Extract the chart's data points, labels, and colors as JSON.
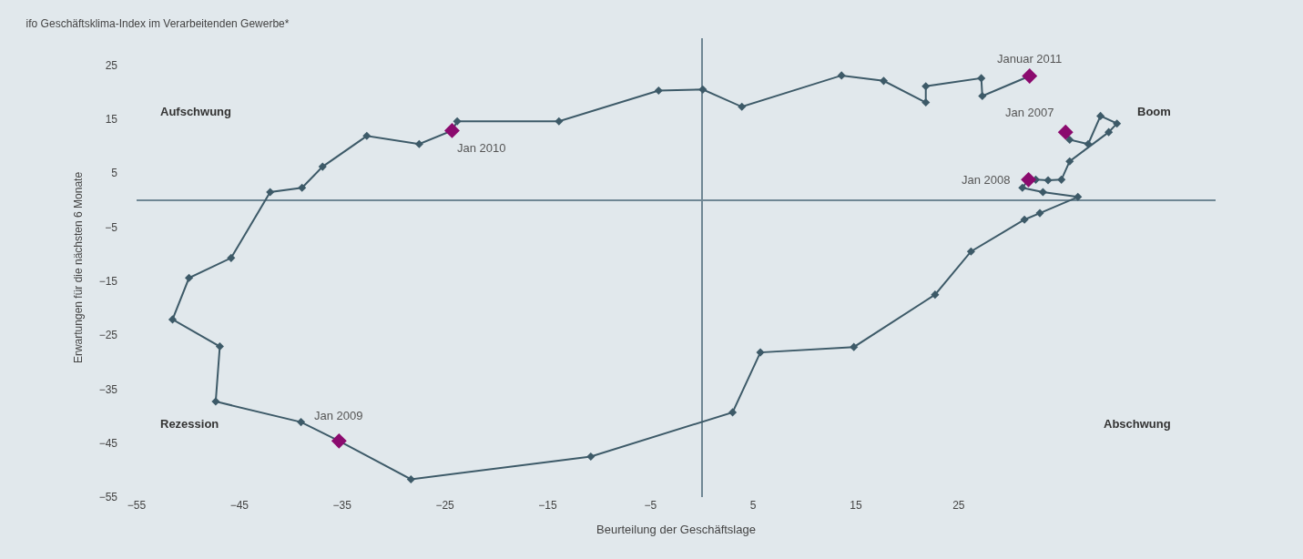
{
  "chart_data": {
    "type": "line",
    "title": "ifo Geschäftsklima-Index im Verarbeitenden Gewerbe*",
    "xlabel": "Beurteilung der Geschäftslage",
    "ylabel": "Erwartungen für die nächsten 6 Monate",
    "xlim": [
      -55,
      50
    ],
    "ylim": [
      -55,
      30
    ],
    "xticks": [
      -55,
      -45,
      -35,
      -25,
      -15,
      -5,
      5,
      15,
      25
    ],
    "yticks": [
      -55,
      -45,
      -35,
      -25,
      -15,
      -5,
      5,
      15,
      25
    ],
    "grid": false,
    "marker": "diamond",
    "series": [
      {
        "color": "#3d5a68",
        "x": [
          35.4,
          35.8,
          37.6,
          38.8,
          40.4,
          39.6,
          35.8,
          35.0,
          33.7,
          32.5,
          31.8,
          31.2,
          33.2,
          36.6,
          32.9,
          31.4,
          26.2,
          22.7,
          14.8,
          5.7,
          3.0,
          -10.8,
          -28.3,
          -35.3,
          -39.0,
          -47.3,
          -46.9,
          -51.5,
          -49.9,
          -45.8,
          -42.0,
          -38.9,
          -36.9,
          -32.6,
          -27.5,
          -24.3,
          -23.8,
          -13.9,
          -4.2,
          0.1,
          3.9,
          13.6,
          17.7,
          21.8,
          21.8,
          27.2,
          27.3,
          31.9
        ],
        "values": [
          12.6,
          11.2,
          10.4,
          15.6,
          14.2,
          12.6,
          7.2,
          3.8,
          3.7,
          3.8,
          3.8,
          2.3,
          1.5,
          0.6,
          -2.4,
          -3.6,
          -9.5,
          -17.5,
          -27.2,
          -28.2,
          -39.3,
          -47.5,
          -51.7,
          -44.6,
          -41.1,
          -37.3,
          -27.1,
          -22.1,
          -14.4,
          -10.7,
          1.5,
          2.3,
          6.2,
          11.9,
          10.4,
          12.9,
          14.6,
          14.6,
          20.3,
          20.5,
          17.3,
          23.1,
          22.1,
          18.1,
          21.1,
          22.6,
          19.3,
          23.0
        ]
      },
      {
        "type": "scatter",
        "color": "#8b0a6e",
        "x": [
          35.4,
          31.8,
          -35.3,
          -24.3,
          31.9
        ],
        "values": [
          12.6,
          3.8,
          -44.6,
          12.9,
          23.0
        ]
      }
    ],
    "annotations": [
      "Aufschwung",
      "Boom",
      "Rezession",
      "Abschwung",
      {
        "text": "Jan 2007",
        "x": 35.4,
        "y": 12.6
      },
      {
        "text": "Jan 2008",
        "x": 31.8,
        "y": 3.8
      },
      {
        "text": "Jan 2009",
        "x": -35.3,
        "y": -44.6
      },
      {
        "text": "Jan 2010",
        "x": -24.3,
        "y": 12.9
      },
      {
        "text": "Januar 2011",
        "x": 31.9,
        "y": 23.0
      }
    ]
  }
}
